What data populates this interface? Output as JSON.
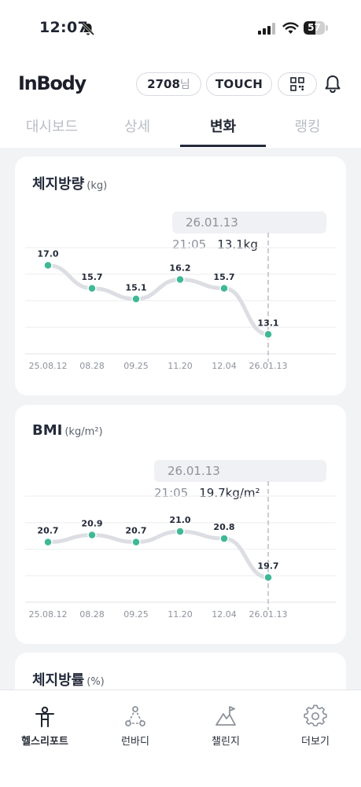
{
  "status_bar": {
    "time": "12:07",
    "battery": "57"
  },
  "header": {
    "logo": "InBody",
    "user_id": "2708",
    "user_suffix": "님",
    "touch_label": "TOUCH"
  },
  "tabs": [
    {
      "label": "대시보드",
      "active": false
    },
    {
      "label": "상세",
      "active": false
    },
    {
      "label": "변화",
      "active": true
    },
    {
      "label": "랭킹",
      "active": false
    }
  ],
  "cards": [
    {
      "title": "체지방량",
      "unit": "(kg)",
      "tooltip_date": "26.01.13 21:05",
      "tooltip_value": "13.1kg"
    },
    {
      "title": "BMI",
      "unit": "(kg/m²)",
      "tooltip_date": "26.01.13 21:05",
      "tooltip_value": "19.7kg/m²"
    },
    {
      "title": "체지방률",
      "unit": "(%)"
    }
  ],
  "chart_data": [
    {
      "type": "line",
      "title": "체지방량 (kg)",
      "categories": [
        "25.08.12",
        "08.28",
        "09.25",
        "11.20",
        "12.04",
        "26.01.13"
      ],
      "values": [
        17.0,
        15.7,
        15.1,
        16.2,
        15.7,
        13.1
      ],
      "value_labels": [
        "17.0",
        "15.7",
        "15.1",
        "16.2",
        "15.7",
        "13.1"
      ],
      "ylim": [
        12.0,
        18.0
      ],
      "grid": true,
      "selected_index": 5,
      "colors": {
        "line": "#dcdee3",
        "point": "#3fb896",
        "cursor": "#b8bcc3"
      }
    },
    {
      "type": "line",
      "title": "BMI (kg/m²)",
      "categories": [
        "25.08.12",
        "08.28",
        "09.25",
        "11.20",
        "12.04",
        "26.01.13"
      ],
      "values": [
        20.7,
        20.9,
        20.7,
        21.0,
        20.8,
        19.7
      ],
      "value_labels": [
        "20.7",
        "20.9",
        "20.7",
        "21.0",
        "20.8",
        "19.7"
      ],
      "ylim": [
        19.0,
        22.0
      ],
      "grid": true,
      "selected_index": 5,
      "colors": {
        "line": "#dcdee3",
        "point": "#3fb896",
        "cursor": "#b8bcc3"
      }
    }
  ],
  "bottom_nav": [
    {
      "label": "헬스리포트",
      "icon": "person-icon",
      "active": true
    },
    {
      "label": "런바디",
      "icon": "triangle-nodes-icon",
      "active": false
    },
    {
      "label": "챌린지",
      "icon": "mountain-flag-icon",
      "active": false
    },
    {
      "label": "더보기",
      "icon": "gear-icon",
      "active": false
    }
  ]
}
